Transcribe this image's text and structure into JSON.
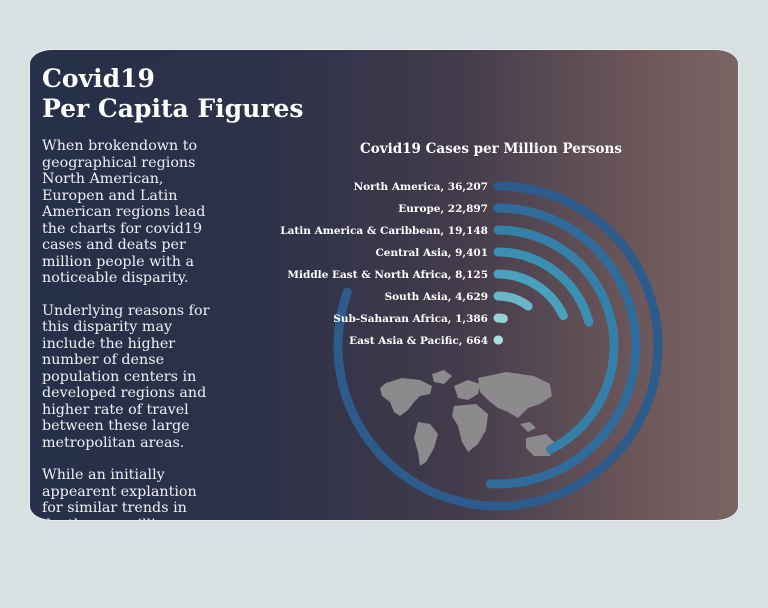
{
  "page": {
    "title_lines": [
      "Covid19",
      "Per Capita Figures"
    ],
    "paragraphs": [
      "When brokendown to geographical regions North American, Europen and Latin American regions lead the charts for covid19 cases and deats per million people with a noticeable disparity.",
      "Underlying reasons for this disparity may include the higher number of dense population centers in developed regions and higher rate of travel between these large metropolitan areas.",
      "While an initially appearent explantion for similar trends in deaths per million persons may be due to the number of infections in"
    ]
  },
  "chart_data": {
    "type": "radial-bar",
    "title": "Covid19 Cases per Million Persons",
    "categories": [
      "North America",
      "Europe",
      "Latin America & Caribbean",
      "Central Asia",
      "Middle East & North Africa",
      "South Asia",
      "Sub-Saharan Africa",
      "East Asia & Pacific"
    ],
    "values": [
      36207,
      22897,
      19148,
      9401,
      8125,
      4629,
      1386,
      664
    ],
    "value_labels": [
      "36,207",
      "22,897",
      "19,148",
      "9,401",
      "8,125",
      "4,629",
      "1,386",
      "664"
    ],
    "max": 45000,
    "colors": [
      "#2c5b8c",
      "#2f6c9c",
      "#3480a8",
      "#3a90b2",
      "#4aa1bd",
      "#6ab5c8",
      "#94d2d6",
      "#a9dfe0"
    ],
    "background_image": "world-map"
  }
}
